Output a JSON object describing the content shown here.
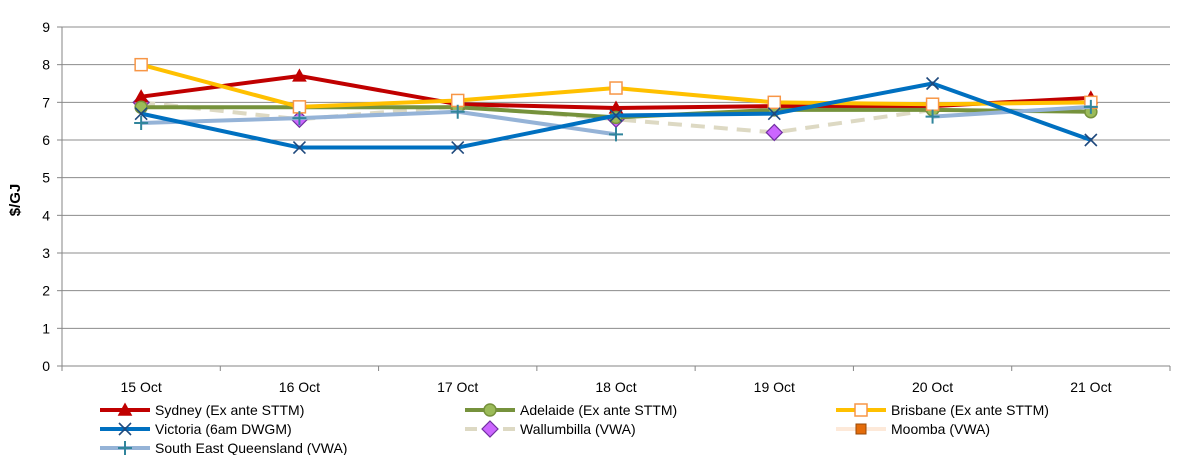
{
  "chart_data": {
    "type": "line",
    "title": "",
    "xlabel": "",
    "ylabel": "$/GJ",
    "ylim": [
      0,
      9
    ],
    "yticks": [
      0,
      1,
      2,
      3,
      4,
      5,
      6,
      7,
      8,
      9
    ],
    "grid": "horizontal",
    "legend_position": "bottom",
    "categories": [
      "15 Oct",
      "16 Oct",
      "17 Oct",
      "18 Oct",
      "19 Oct",
      "20 Oct",
      "21 Oct"
    ],
    "series": [
      {
        "name": "Sydney (Ex ante STTM)",
        "color": "#C00000",
        "marker": "triangle",
        "dash": "solid",
        "values": [
          7.15,
          7.7,
          6.95,
          6.85,
          6.9,
          6.9,
          7.12
        ]
      },
      {
        "name": "Adelaide (Ex ante STTM)",
        "color": "#76923C",
        "marker": "circle",
        "dash": "solid",
        "values": [
          6.87,
          6.87,
          6.87,
          6.6,
          6.8,
          6.8,
          6.75
        ]
      },
      {
        "name": "Brisbane (Ex ante STTM)",
        "color": "#FFC000",
        "marker": "square-open",
        "dash": "solid",
        "values": [
          8.0,
          6.88,
          7.05,
          7.38,
          7.0,
          6.95,
          7.0
        ]
      },
      {
        "name": "Victoria (6am DWGM)",
        "color": "#0070C0",
        "marker": "x",
        "dash": "solid",
        "values": [
          6.7,
          5.8,
          5.8,
          6.65,
          6.7,
          7.5,
          6.0
        ]
      },
      {
        "name": "Wallumbilla (VWA)",
        "color": "#DDD9C3",
        "marker": "diamond",
        "dash": "dashed",
        "values": [
          7.0,
          6.55,
          6.9,
          6.55,
          6.2,
          6.8,
          null
        ]
      },
      {
        "name": "Moomba (VWA)",
        "color": "#FDE9D9",
        "marker": "square-filled",
        "dash": "solid",
        "values": [
          null,
          null,
          null,
          null,
          null,
          null,
          null
        ]
      },
      {
        "name": "South East Queensland (VWA)",
        "color": "#95B3D7",
        "marker": "plus",
        "dash": "solid",
        "values": [
          6.45,
          6.58,
          6.75,
          6.15,
          null,
          6.62,
          6.88
        ]
      }
    ]
  }
}
